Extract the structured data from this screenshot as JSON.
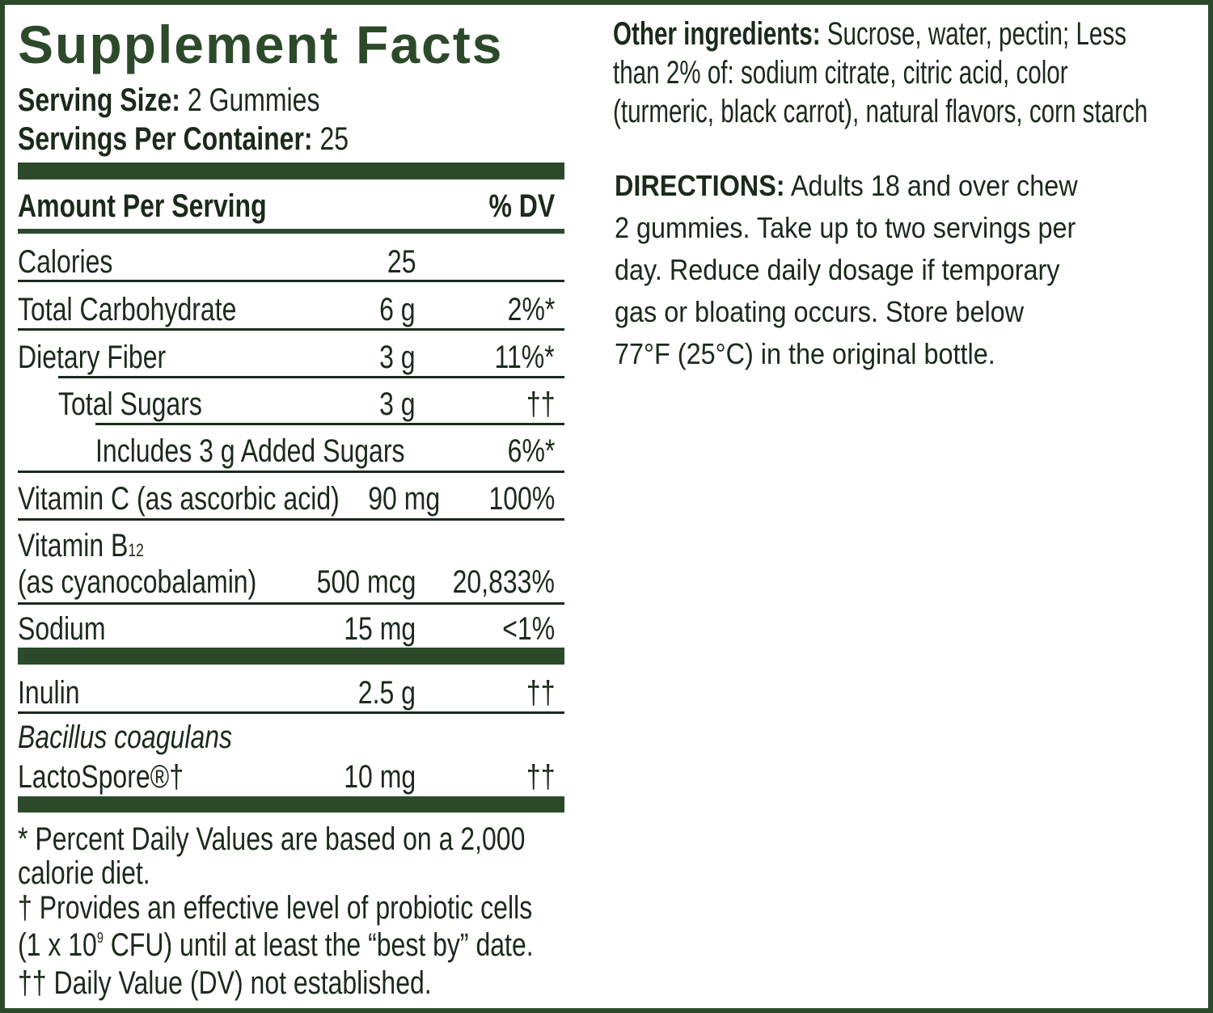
{
  "facts": {
    "title": "Supplement Facts",
    "serving_size_label": "Serving Size:",
    "serving_size_value": "2 Gummies",
    "servings_label": "Servings Per Container:",
    "servings_value": "25",
    "amount_header": "Amount Per Serving",
    "dv_header": "% DV",
    "rows": [
      {
        "name": "Calories",
        "amount": "25",
        "dv": ""
      },
      {
        "name": "Total Carbohydrate",
        "amount": "6 g",
        "dv": "2%*"
      },
      {
        "name": "Dietary Fiber",
        "amount": "3 g",
        "dv": "11%*"
      },
      {
        "name": "Total Sugars",
        "amount": "3 g",
        "dv": "††"
      },
      {
        "name": "Includes 3 g Added Sugars",
        "amount": "",
        "dv": "6%*"
      },
      {
        "name": "Vitamin C (as ascorbic acid)",
        "amount": "90 mg",
        "dv": "100%"
      },
      {
        "name": "Vitamin B",
        "name_sub": "12",
        "name_line2": "(as cyanocobalamin)",
        "amount": "500 mcg",
        "dv": "20,833%"
      },
      {
        "name": "Sodium",
        "amount": "15 mg",
        "dv": "<1%"
      },
      {
        "name": "Inulin",
        "amount": "2.5 g",
        "dv": "††"
      },
      {
        "name": "Bacillus coagulans",
        "name_line2": "LactoSpore®†",
        "amount": "10 mg",
        "dv": "††"
      }
    ],
    "footnote1": "* Percent Daily Values are based on a 2,000",
    "footnote1b": "calorie diet.",
    "footnote2": "† Provides an effective level of probiotic cells",
    "footnote2b_pre": "(1 x 10",
    "footnote2b_sup": "9",
    "footnote2b_post": " CFU) until at least the “best by” date.",
    "footnote3": "†† Daily Value (DV) not established."
  },
  "other": {
    "label": "Other ingredients:",
    "lines": [
      " Sucrose, water, pectin; Less",
      "than 2% of: sodium citrate, citric acid, color",
      "(turmeric, black carrot), natural flavors, corn starch"
    ]
  },
  "directions": {
    "label": "DIRECTIONS:",
    "lines": [
      " Adults 18 and over chew",
      "2 gummies. Take up to two servings per",
      "day. Reduce daily dosage if temporary",
      "gas or bloating occurs. Store below",
      "77°F (25°C) in the original bottle."
    ]
  },
  "colors": {
    "border": "#2c4a2a",
    "text": "#1b2a1a"
  }
}
